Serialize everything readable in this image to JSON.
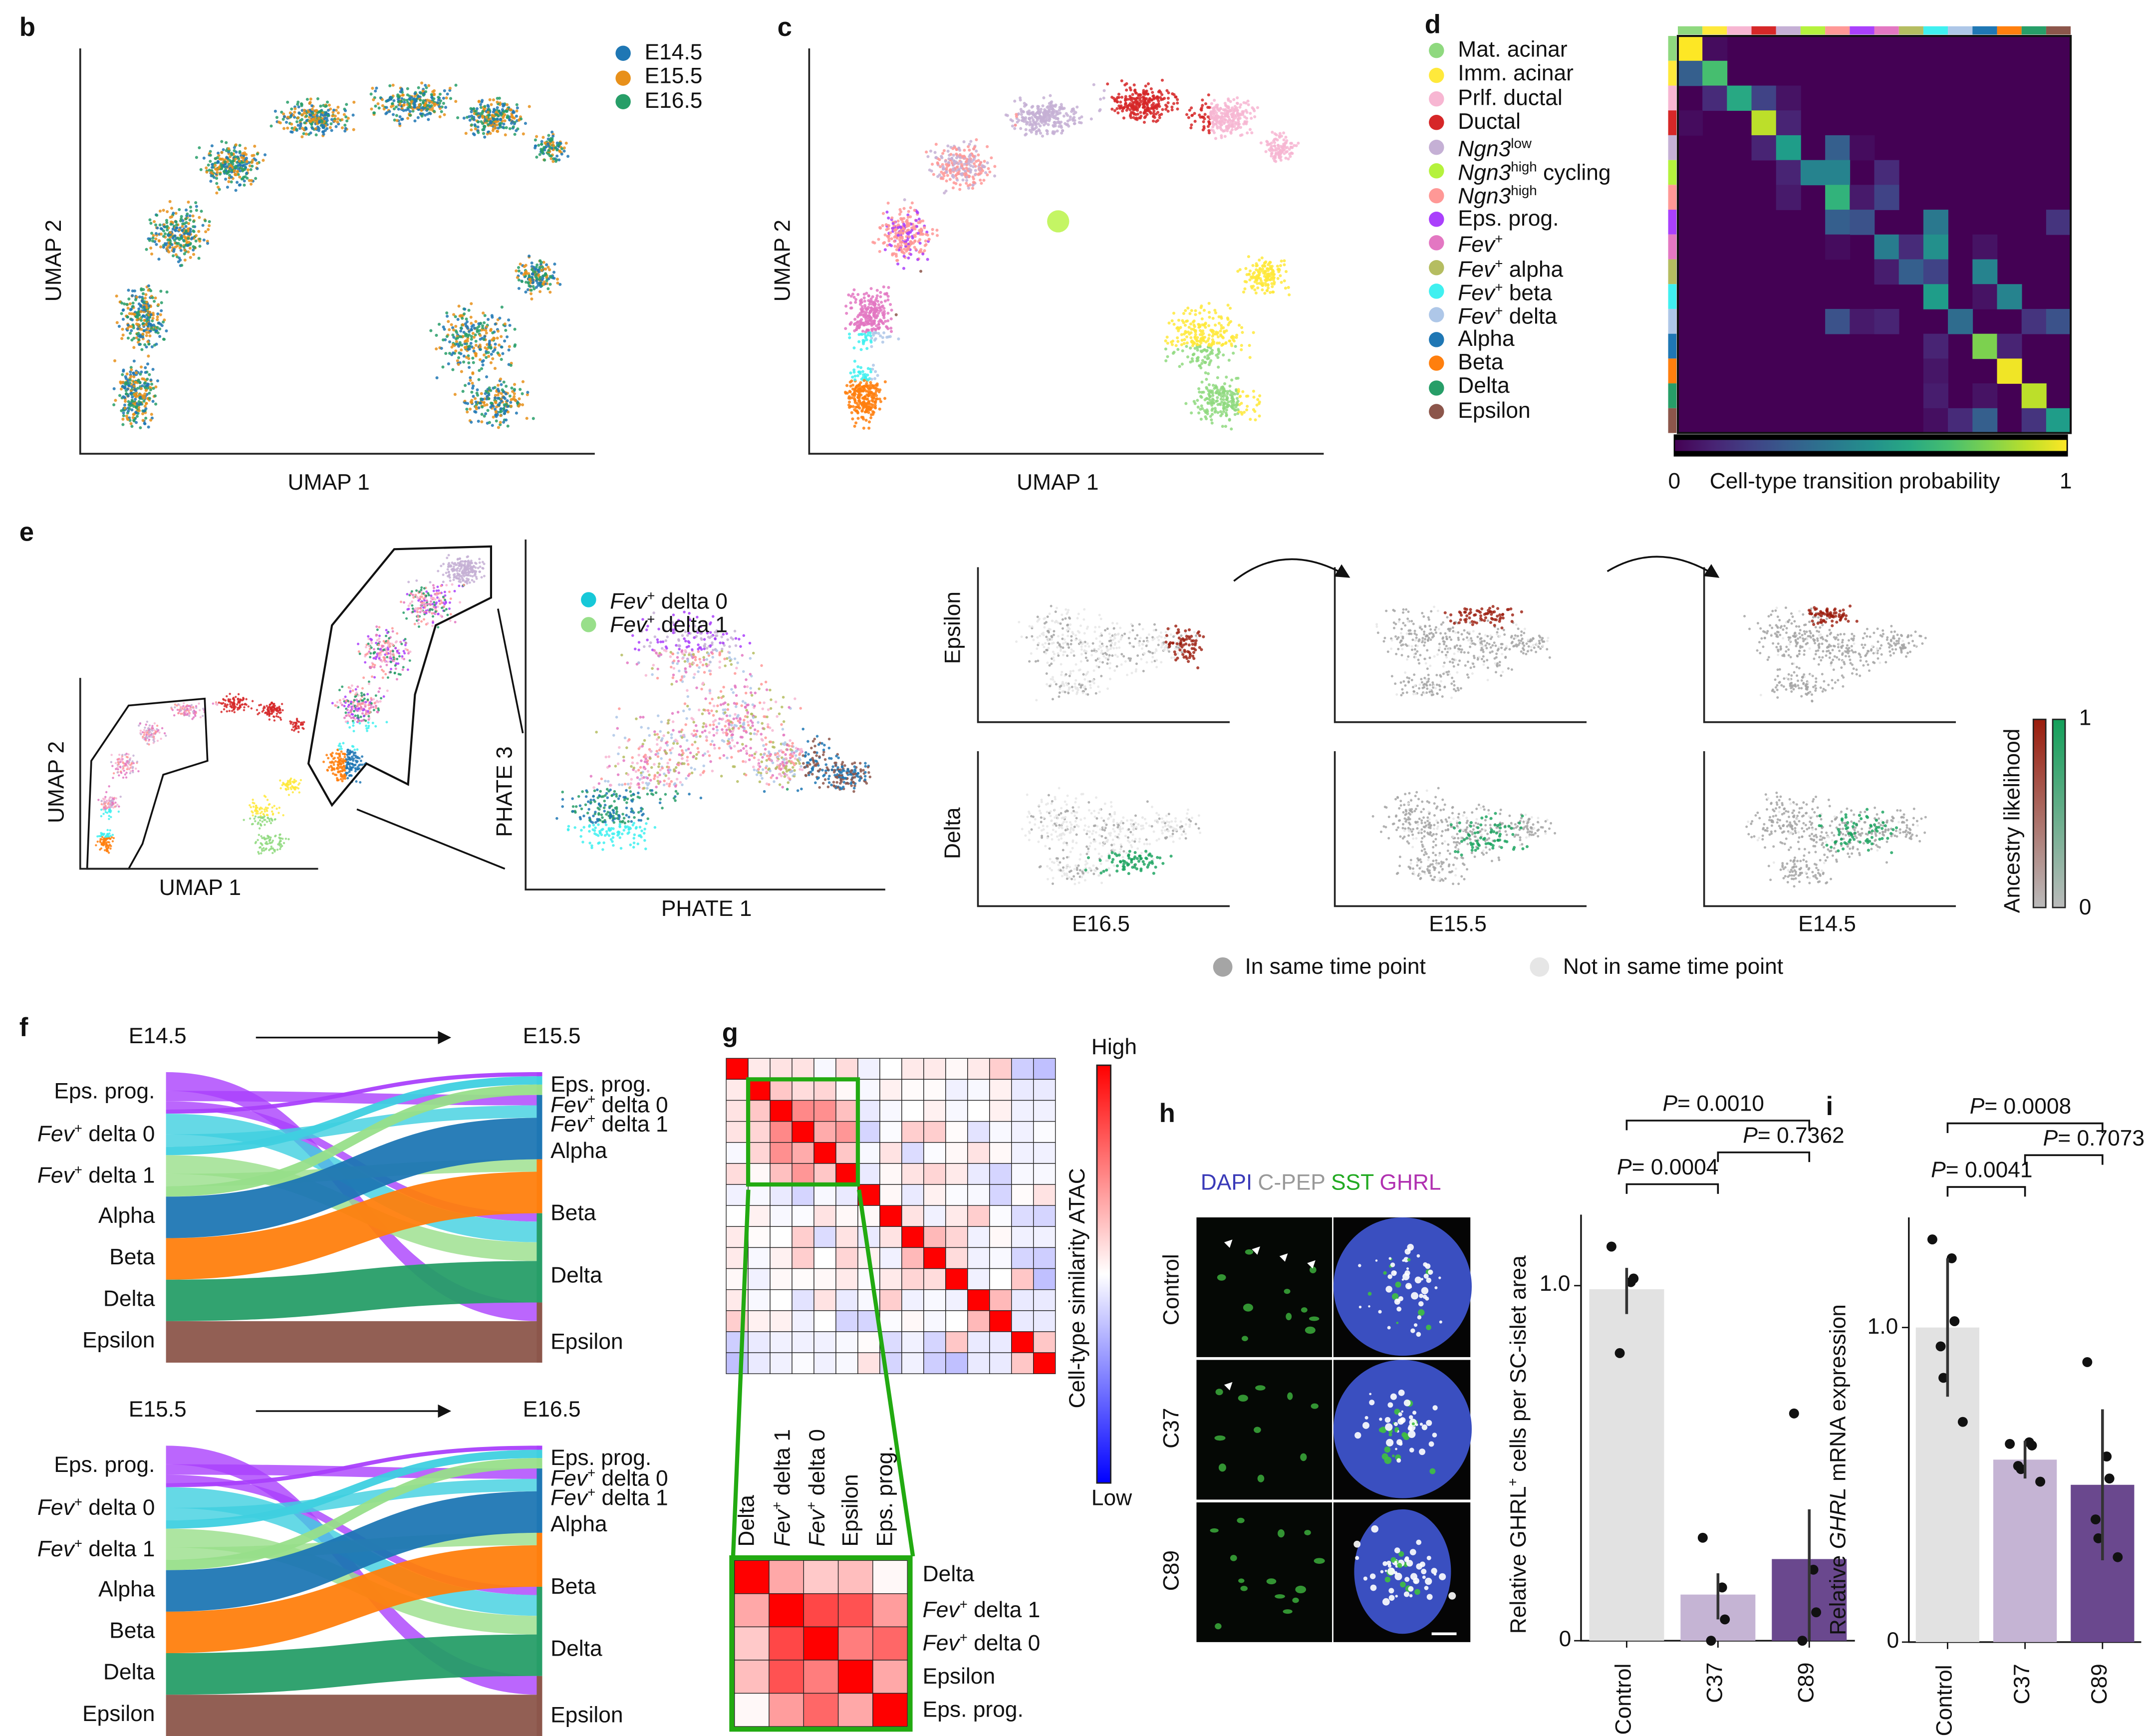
{
  "panels": {
    "b": "b",
    "c": "c",
    "d": "d",
    "e": "e",
    "f": "f",
    "g": "g",
    "h": "h",
    "i": "i"
  },
  "axes": {
    "umap1": "UMAP 1",
    "umap2": "UMAP 2",
    "phate1": "PHATE 1",
    "phate3": "PHATE 3"
  },
  "time_legend": [
    {
      "label": "E14.5",
      "color": "#1f77b4"
    },
    {
      "label": "E15.5",
      "color": "#e8901a"
    },
    {
      "label": "E16.5",
      "color": "#279e68"
    }
  ],
  "cell_types": [
    {
      "name": "Mat. acinar",
      "color": "#8fd97f"
    },
    {
      "name": "Imm. acinar",
      "color": "#ffe93b"
    },
    {
      "name": "Prlf. ductal",
      "color": "#f7b6d2"
    },
    {
      "name": "Ductal",
      "color": "#d62728"
    },
    {
      "it": "Ngn3",
      "sup": "low",
      "rest": "",
      "color": "#c5b0d5"
    },
    {
      "it": "Ngn3",
      "sup": "high",
      "rest": " cycling",
      "color": "#b5f23d"
    },
    {
      "it": "Ngn3",
      "sup": "high",
      "rest": "",
      "color": "#ff9896"
    },
    {
      "name": "Eps. prog.",
      "color": "#aa40fc"
    },
    {
      "it": "Fev",
      "sup": "+",
      "rest": "",
      "color": "#e377c2"
    },
    {
      "it": "Fev",
      "sup": "+",
      "rest": " alpha",
      "color": "#b5bd61"
    },
    {
      "it": "Fev",
      "sup": "+",
      "rest": " beta",
      "color": "#40f0f0"
    },
    {
      "it": "Fev",
      "sup": "+",
      "rest": " delta",
      "color": "#aec7e8"
    },
    {
      "name": "Alpha",
      "color": "#1f77b4"
    },
    {
      "name": "Beta",
      "color": "#ff7f0e"
    },
    {
      "name": "Delta",
      "color": "#279e68"
    },
    {
      "name": "Epsilon",
      "color": "#8c564b"
    }
  ],
  "transition": {
    "colorbar_min": "0",
    "colorbar_max": "1",
    "colorbar_label": "Cell-type transition probability",
    "colormap": "viridis",
    "entries": [
      [
        0,
        0,
        1.0
      ],
      [
        0,
        1,
        0.03
      ],
      [
        1,
        0,
        0.3
      ],
      [
        1,
        1,
        0.7
      ],
      [
        2,
        1,
        0.12
      ],
      [
        2,
        2,
        0.6
      ],
      [
        2,
        3,
        0.2
      ],
      [
        2,
        4,
        0.05
      ],
      [
        3,
        0,
        0.03
      ],
      [
        3,
        3,
        0.9
      ],
      [
        3,
        4,
        0.1
      ],
      [
        4,
        3,
        0.1
      ],
      [
        4,
        4,
        0.55
      ],
      [
        4,
        6,
        0.3
      ],
      [
        4,
        7,
        0.03
      ],
      [
        5,
        4,
        0.1
      ],
      [
        5,
        5,
        0.45
      ],
      [
        5,
        6,
        0.45
      ],
      [
        5,
        8,
        0.12
      ],
      [
        6,
        4,
        0.07
      ],
      [
        6,
        6,
        0.65
      ],
      [
        6,
        7,
        0.07
      ],
      [
        6,
        8,
        0.2
      ],
      [
        7,
        6,
        0.3
      ],
      [
        7,
        7,
        0.25
      ],
      [
        7,
        10,
        0.4
      ],
      [
        7,
        15,
        0.15
      ],
      [
        8,
        6,
        0.03
      ],
      [
        8,
        8,
        0.42
      ],
      [
        8,
        9,
        0.12
      ],
      [
        8,
        10,
        0.5
      ],
      [
        8,
        12,
        0.05
      ],
      [
        9,
        8,
        0.08
      ],
      [
        9,
        9,
        0.3
      ],
      [
        9,
        10,
        0.2
      ],
      [
        9,
        12,
        0.45
      ],
      [
        10,
        10,
        0.55
      ],
      [
        10,
        12,
        0.05
      ],
      [
        10,
        13,
        0.45
      ],
      [
        11,
        6,
        0.25
      ],
      [
        11,
        7,
        0.07
      ],
      [
        11,
        8,
        0.1
      ],
      [
        11,
        11,
        0.35
      ],
      [
        11,
        14,
        0.15
      ],
      [
        11,
        15,
        0.25
      ],
      [
        12,
        10,
        0.1
      ],
      [
        12,
        12,
        0.8
      ],
      [
        12,
        13,
        0.1
      ],
      [
        13,
        10,
        0.06
      ],
      [
        13,
        13,
        0.98
      ],
      [
        14,
        10,
        0.08
      ],
      [
        14,
        12,
        0.05
      ],
      [
        14,
        14,
        0.9
      ],
      [
        15,
        10,
        0.04
      ],
      [
        15,
        11,
        0.12
      ],
      [
        15,
        12,
        0.3
      ],
      [
        15,
        14,
        0.15
      ],
      [
        15,
        15,
        0.55
      ]
    ]
  },
  "e": {
    "legend": [
      {
        "it": "Fev",
        "sup": "+",
        "rest": " delta 0",
        "color": "#17c8d8"
      },
      {
        "it": "Fev",
        "sup": "+",
        "rest": " delta 1",
        "color": "#98df8a"
      }
    ],
    "rows": [
      "Epsilon",
      "Delta"
    ],
    "cols": [
      "E16.5",
      "E15.5",
      "E14.5"
    ],
    "row_colors": [
      "#9b1c0c",
      "#13a05a"
    ],
    "ancestry_label": "Ancestry likelihood",
    "ancestry_min": "0",
    "ancestry_max": "1",
    "same_label": "In same time point",
    "not_same_label": "Not in same time point",
    "same_color": "#a5a5a5",
    "not_same_color": "#e6e6e6"
  },
  "f": {
    "sankeys": [
      {
        "from": "E14.5",
        "to": "E15.5"
      },
      {
        "from": "E15.5",
        "to": "E16.5"
      }
    ],
    "nodes": [
      {
        "it": "",
        "sup": "",
        "rest": "Eps. prog.",
        "color": "#aa40fc"
      },
      {
        "it": "Fev",
        "sup": "+",
        "rest": " delta 0",
        "color": "#3fd0e0"
      },
      {
        "it": "Fev",
        "sup": "+",
        "rest": " delta 1",
        "color": "#98df8a"
      },
      {
        "it": "",
        "sup": "",
        "rest": "Alpha",
        "color": "#1f77b4"
      },
      {
        "it": "",
        "sup": "",
        "rest": "Beta",
        "color": "#ff7f0e"
      },
      {
        "it": "",
        "sup": "",
        "rest": "Delta",
        "color": "#279e68"
      },
      {
        "it": "",
        "sup": "",
        "rest": "Epsilon",
        "color": "#8c564b"
      }
    ],
    "flows": [
      [
        0,
        6,
        0.45
      ],
      [
        0,
        3,
        0.25
      ],
      [
        0,
        5,
        0.2
      ],
      [
        0,
        0,
        0.1
      ],
      [
        1,
        5,
        0.5
      ],
      [
        1,
        3,
        0.3
      ],
      [
        1,
        1,
        0.2
      ],
      [
        2,
        5,
        0.45
      ],
      [
        2,
        4,
        0.3
      ],
      [
        2,
        2,
        0.25
      ],
      [
        3,
        3,
        1.0
      ],
      [
        4,
        4,
        1.0
      ],
      [
        5,
        5,
        1.0
      ],
      [
        6,
        6,
        1.0
      ]
    ]
  },
  "g": {
    "colorbar_high": "High",
    "colorbar_low": "Low",
    "colorbar_label": "Cell-type similarity ATAC",
    "colormap": "bwr",
    "matrix": [
      [
        1,
        0.15,
        0.2,
        0.2,
        -0.05,
        0.25,
        -0.1,
        0,
        0.15,
        0.15,
        0.05,
        0.15,
        0.35,
        -0.35,
        -0.45
      ],
      [
        0.15,
        1,
        0.4,
        0.25,
        0.3,
        0.05,
        -0.05,
        0.1,
        0.03,
        0.03,
        -0.1,
        -0.05,
        0.1,
        -0.15,
        -0.15
      ],
      [
        0.2,
        0.4,
        1,
        0.85,
        0.8,
        0.45,
        -0.15,
        -0.05,
        0,
        0.1,
        -0.05,
        0,
        0.1,
        -0.1,
        -0.1
      ],
      [
        0.2,
        0.3,
        0.85,
        1,
        0.6,
        0.75,
        -0.3,
        -0.03,
        0.35,
        0.35,
        0.03,
        -0.2,
        -0.05,
        -0.1,
        -0.03
      ],
      [
        -0.05,
        0.3,
        0.8,
        0.6,
        1,
        0.4,
        -0.05,
        0.2,
        -0.25,
        -0.03,
        0.05,
        0.2,
        0.05,
        -0.1,
        -0.1
      ],
      [
        0.25,
        0.05,
        0.45,
        0.75,
        0.4,
        1,
        -0.15,
        0.05,
        0.2,
        0.3,
        0.15,
        -0.15,
        -0.3,
        -0.05,
        -0.05
      ],
      [
        -0.1,
        -0.05,
        -0.15,
        -0.3,
        -0.05,
        -0.15,
        1,
        0.05,
        -0.15,
        0.1,
        -0.03,
        -0.05,
        -0.3,
        0.03,
        0.2
      ],
      [
        0,
        0.1,
        -0.05,
        -0.03,
        0.2,
        0.05,
        0.05,
        1,
        0.2,
        -0.1,
        0.15,
        0.35,
        -0.03,
        -0.25,
        -0.3
      ],
      [
        0.15,
        0.03,
        0,
        0.35,
        -0.25,
        0.2,
        -0.15,
        0.2,
        1,
        0.5,
        0.3,
        -0.1,
        0.05,
        -0.1,
        -0.1
      ],
      [
        0.15,
        -0.05,
        0.1,
        0.35,
        0,
        0.3,
        0.1,
        -0.1,
        0.5,
        1,
        0.25,
        -0.1,
        -0.05,
        -0.3,
        -0.35
      ],
      [
        0.05,
        -0.1,
        0.05,
        0.03,
        0.05,
        0.15,
        -0.03,
        0.15,
        0.3,
        0.25,
        1,
        -0.1,
        0,
        0.4,
        -0.45
      ],
      [
        0.15,
        -0.05,
        0,
        -0.2,
        0.2,
        -0.15,
        -0.05,
        0.35,
        -0.1,
        -0.05,
        -0.1,
        1,
        0.5,
        -0.15,
        -0.15
      ],
      [
        0.35,
        0.1,
        0.1,
        -0.1,
        0,
        -0.3,
        -0.3,
        -0.03,
        0.05,
        -0.05,
        0,
        0.5,
        1,
        -0.15,
        -0.15
      ],
      [
        -0.35,
        -0.15,
        -0.1,
        -0.1,
        -0.1,
        -0.05,
        0.03,
        -0.25,
        -0.1,
        -0.3,
        0.4,
        -0.15,
        -0.15,
        1,
        0.4
      ],
      [
        -0.45,
        -0.15,
        -0.1,
        -0.03,
        -0.1,
        -0.05,
        0.2,
        -0.3,
        -0.1,
        -0.35,
        -0.45,
        -0.15,
        -0.15,
        0.4,
        1
      ]
    ],
    "zoom_labels": [
      {
        "it": "",
        "sup": "",
        "rest": "Delta"
      },
      {
        "it": "Fev",
        "sup": "+",
        "rest": " delta 1"
      },
      {
        "it": "Fev",
        "sup": "+",
        "rest": " delta 0"
      },
      {
        "it": "",
        "sup": "",
        "rest": "Epsilon"
      },
      {
        "it": "",
        "sup": "",
        "rest": "Eps. prog."
      }
    ],
    "zoom_matrix": [
      [
        1,
        0.4,
        0.25,
        0.3,
        0.03
      ],
      [
        0.4,
        1,
        0.85,
        0.8,
        0.45
      ],
      [
        0.25,
        0.85,
        1,
        0.6,
        0.7
      ],
      [
        0.3,
        0.8,
        0.6,
        1,
        0.4
      ],
      [
        0.03,
        0.45,
        0.7,
        0.4,
        1
      ]
    ],
    "highlight_color": "#22aa11"
  },
  "h": {
    "stains": [
      {
        "label": "DAPI",
        "color": "#3a3ab8"
      },
      {
        "label": "C-PEP",
        "color": "#999999"
      },
      {
        "label": "SST",
        "color": "#22aa22"
      },
      {
        "label": "GHRL",
        "color": "#b030b0"
      }
    ],
    "rows": [
      "Control",
      "C37",
      "C89"
    ]
  },
  "chart_data": [
    {
      "type": "bar",
      "panel": "h",
      "categories": [
        "Control",
        "C37",
        "C89"
      ],
      "values": [
        0.99,
        0.13,
        0.23
      ],
      "error": [
        [
          0.92,
          1.05
        ],
        [
          0.06,
          0.19
        ],
        [
          0.0,
          0.37
        ]
      ],
      "points": [
        [
          1.11,
          1.01,
          1.02,
          0.81
        ],
        [
          0.29,
          0.15,
          0.06,
          0.0
        ],
        [
          0.64,
          0.2,
          0.08,
          0.0
        ]
      ],
      "colors": [
        "#e2e2e2",
        "#c5b4d4",
        "#6a488e"
      ],
      "ylabel": "Relative GHRL+ cells per SC-islet area",
      "ylabel_main": "Relative GHRL",
      "ylabel_sup": "+",
      "ylabel_rest": " cells per SC-islet area",
      "yticks": [
        "0",
        "1.0"
      ],
      "ylim": [
        0,
        1.2
      ],
      "pvalues": [
        {
          "a": 0,
          "b": 2,
          "text": "= 0.0010"
        },
        {
          "a": 1,
          "b": 2,
          "text": "= 0.7362"
        },
        {
          "a": 0,
          "b": 1,
          "text": "= 0.0004"
        }
      ]
    },
    {
      "type": "bar",
      "panel": "i",
      "categories": [
        "Control",
        "C37",
        "C89"
      ],
      "values": [
        1.0,
        0.58,
        0.5
      ],
      "error": [
        [
          0.78,
          1.22
        ],
        [
          0.52,
          0.64
        ],
        [
          0.26,
          0.74
        ]
      ],
      "points": [
        [
          1.28,
          1.22,
          1.02,
          0.94,
          0.84,
          0.7
        ],
        [
          0.63,
          0.635,
          0.625,
          0.56,
          0.55,
          0.51
        ],
        [
          0.89,
          0.59,
          0.52,
          0.39,
          0.33,
          0.27
        ]
      ],
      "colors": [
        "#e2e2e2",
        "#c5b4d4",
        "#6a488e"
      ],
      "ylabel": "Relative GHRL mRNA expression",
      "ylabel_main": "Relative ",
      "ylabel_it": "GHRL",
      "ylabel_rest": " mRNA expression",
      "yticks": [
        "0",
        "1.0"
      ],
      "ylim": [
        0,
        1.35
      ],
      "pvalues": [
        {
          "a": 0,
          "b": 2,
          "text": "= 0.0008"
        },
        {
          "a": 1,
          "b": 2,
          "text": "= 0.7073"
        },
        {
          "a": 0,
          "b": 1,
          "text": "= 0.0041"
        }
      ]
    }
  ],
  "p_letter": "P"
}
